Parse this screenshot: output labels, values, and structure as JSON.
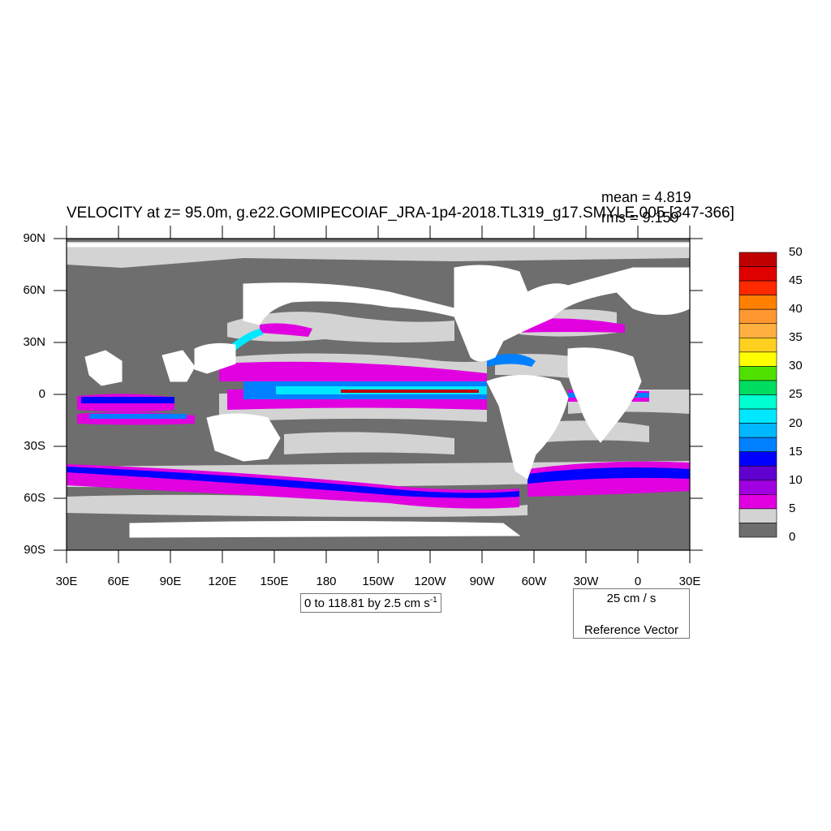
{
  "title": "VELOCITY at z=  95.0m, g.e22.GOMIPECOIAF_JRA-1p4-2018.TL319_g17.SMYLE.005 [347-366]",
  "stats": {
    "mean": "mean = 4.819",
    "rms": "rms = 9.159"
  },
  "lat_labels": [
    "90N",
    "60N",
    "30N",
    "0",
    "30S",
    "60S",
    "90S"
  ],
  "lon_labels": [
    "30E",
    "60E",
    "90E",
    "120E",
    "150E",
    "180",
    "150W",
    "120W",
    "90W",
    "60W",
    "30W",
    "0",
    "30E"
  ],
  "contour_info": "0 to 118.81 by 2.5 cm s",
  "contour_info_sup": "-1",
  "reference_vector": {
    "magnitude": "25 cm / s",
    "label": "Reference Vector"
  },
  "colorbar": {
    "labels": [
      "50",
      "45",
      "40",
      "35",
      "30",
      "25",
      "20",
      "15",
      "10",
      "5",
      "0"
    ],
    "colors": [
      "#c00000",
      "#e00000",
      "#ff2a00",
      "#ff8000",
      "#ff9830",
      "#ffb040",
      "#ffd020",
      "#ffff00",
      "#50e000",
      "#00dd60",
      "#00ffd0",
      "#00e8ff",
      "#00b8ff",
      "#0080ff",
      "#0000ff",
      "#6000d0",
      "#a000e0",
      "#e000e0",
      "#d3d3d3",
      "#6e6e6e"
    ]
  },
  "colors": {
    "land": "#ffffff",
    "low_speed": "#6e6e6e",
    "mid_speed": "#d3d3d3",
    "fast": "#e000e0"
  }
}
